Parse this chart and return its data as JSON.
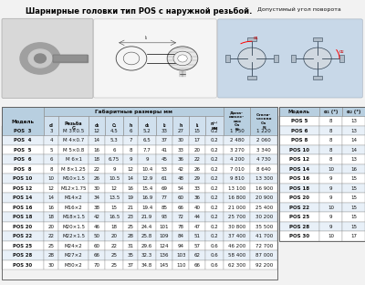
{
  "title": "Шарнирные головки тип POS с наружной резьбой.",
  "title2": "Допустимый угол поворота",
  "main_table_rows": [
    [
      "POS  3",
      "3",
      "M 3×0.5",
      "12",
      "4.5",
      "6",
      "5.2",
      "33",
      "27",
      "15",
      "0.2",
      "1 750",
      "1 220"
    ],
    [
      "POS  4",
      "4",
      "M 4×0.7",
      "14",
      "5.3",
      "7",
      "6.5",
      "37",
      "30",
      "17",
      "0.2",
      "2 480",
      "2 060"
    ],
    [
      "POS  5",
      "5",
      "M 5×0.8",
      "16",
      "6",
      "8",
      "7.7",
      "41",
      "33",
      "20",
      "0.2",
      "3 270",
      "3 340"
    ],
    [
      "POS  6",
      "6",
      "M 6×1",
      "18",
      "6.75",
      "9",
      "9",
      "45",
      "36",
      "22",
      "0.2",
      "4 200",
      "4 730"
    ],
    [
      "POS  8",
      "8",
      "M 8×1.25",
      "22",
      "9",
      "12",
      "10.4",
      "53",
      "42",
      "26",
      "0.2",
      "7 010",
      "8 640"
    ],
    [
      "POS 10",
      "10",
      "M10×1.5",
      "26",
      "10.5",
      "14",
      "12.9",
      "61",
      "48",
      "29",
      "0.2",
      "9 810",
      "13 300"
    ],
    [
      "POS 12",
      "12",
      "M12×1.75",
      "30",
      "12",
      "16",
      "15.4",
      "69",
      "54",
      "33",
      "0.2",
      "13 100",
      "16 900"
    ],
    [
      "POS 14",
      "14",
      "M14×2",
      "34",
      "13.5",
      "19",
      "16.9",
      "77",
      "60",
      "36",
      "0.2",
      "16 800",
      "20 900"
    ],
    [
      "POS 16",
      "16",
      "M16×2",
      "38",
      "15",
      "21",
      "19.4",
      "85",
      "66",
      "40",
      "0.2",
      "21 000",
      "25 400"
    ],
    [
      "POS 18",
      "18",
      "M18×1.5",
      "42",
      "16.5",
      "23",
      "21.9",
      "93",
      "72",
      "44",
      "0.2",
      "25 700",
      "30 200"
    ],
    [
      "POS 20",
      "20",
      "M20×1.5",
      "46",
      "18",
      "25",
      "24.4",
      "101",
      "78",
      "47",
      "0.2",
      "30 800",
      "35 500"
    ],
    [
      "POS 22",
      "22",
      "M22×1.5",
      "50",
      "20",
      "28",
      "25.8",
      "109",
      "84",
      "51",
      "0.2",
      "37 400",
      "41 700"
    ],
    [
      "POS 25",
      "25",
      "M24×2",
      "60",
      "22",
      "31",
      "29.6",
      "124",
      "94",
      "57",
      "0.6",
      "46 200",
      "72 700"
    ],
    [
      "POS 28",
      "28",
      "M27×2",
      "66",
      "25",
      "35",
      "32.3",
      "136",
      "103",
      "62",
      "0.6",
      "58 400",
      "87 000"
    ],
    [
      "POS 30",
      "30",
      "M30×2",
      "70",
      "25",
      "37",
      "34.8",
      "145",
      "110",
      "66",
      "0.6",
      "62 300",
      "92 200"
    ]
  ],
  "angle_table_rows": [
    [
      "POS 5",
      "8",
      "13"
    ],
    [
      "POS 6",
      "8",
      "13"
    ],
    [
      "POS 8",
      "8",
      "14"
    ],
    [
      "POS 10",
      "8",
      "14"
    ],
    [
      "POS 12",
      "8",
      "13"
    ],
    [
      "POS 14",
      "10",
      "16"
    ],
    [
      "POS 16",
      "9",
      "15"
    ],
    [
      "POS 18",
      "9",
      "15"
    ],
    [
      "POS 20",
      "9",
      "15"
    ],
    [
      "POS 22",
      "10",
      "15"
    ],
    [
      "POS 25",
      "9",
      "15"
    ],
    [
      "POS 28",
      "9",
      "15"
    ],
    [
      "POS 30",
      "10",
      "17"
    ]
  ],
  "col_headers_line1": [
    "Модель",
    "d",
    "Резьба",
    "d₂",
    "C₁",
    "h",
    "d₁",
    "l₂",
    "h",
    "l₁",
    "n⁽¹⁾",
    "Динам.",
    "Стат."
  ],
  "col_headers_line2": [
    "",
    "",
    "G",
    "",
    "",
    "",
    "",
    "",
    "",
    "",
    "мм",
    "Ca N",
    "Ca N"
  ],
  "col_widths_rel": [
    1.4,
    0.5,
    1.0,
    0.55,
    0.6,
    0.5,
    0.6,
    0.55,
    0.55,
    0.55,
    0.6,
    0.9,
    0.9
  ],
  "header_bg": "#b8cfe0",
  "header_bg2": "#d0e0ee",
  "row_bg_odd": "#ffffff",
  "row_bg_even": "#e8f0f8",
  "border_color": "#888888",
  "title_fontsize": 6.0,
  "table_fontsize": 4.0,
  "fig_bg": "#f2f2f2"
}
